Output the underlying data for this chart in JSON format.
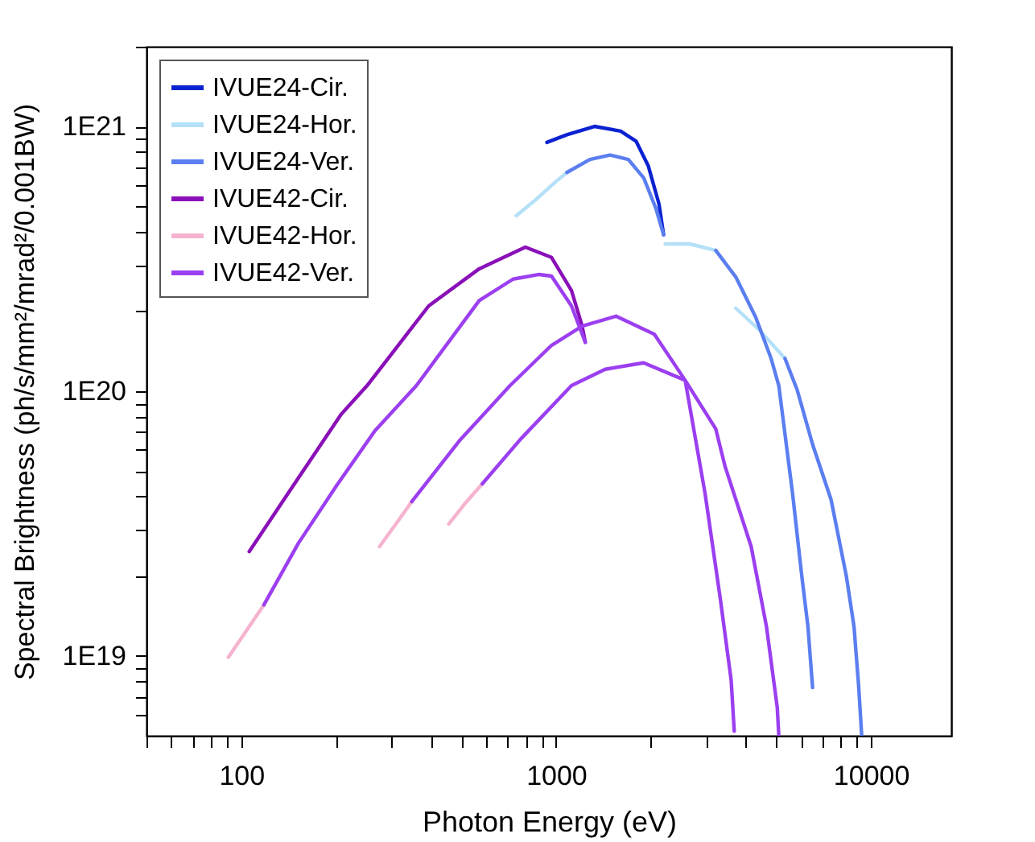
{
  "chart_data": {
    "type": "line",
    "xlabel": "Photon Energy (eV)",
    "ylabel": "Spectral Brightness (ph/s/mm²/mrad²/0.001BW)",
    "log": "xy",
    "legend": "top left",
    "marker": "none",
    "line_style": "solid",
    "xlim": [
      50,
      18000
    ],
    "ylim": [
      5e+18,
      2e+21
    ],
    "xticks": [
      {
        "value": 50,
        "label": null
      },
      {
        "value": 60,
        "label": null
      },
      {
        "value": 70,
        "label": null
      },
      {
        "value": 80,
        "label": null
      },
      {
        "value": 90,
        "label": null
      },
      100,
      {
        "value": 200,
        "label": null
      },
      {
        "value": 300,
        "label": null
      },
      {
        "value": 400,
        "label": null
      },
      {
        "value": 500,
        "label": null
      },
      {
        "value": 600,
        "label": null
      },
      {
        "value": 700,
        "label": null
      },
      {
        "value": 800,
        "label": null
      },
      {
        "value": 900,
        "label": null
      },
      1000,
      {
        "value": 2000,
        "label": null
      },
      {
        "value": 3000,
        "label": null
      },
      {
        "value": 4000,
        "label": null
      },
      {
        "value": 5000,
        "label": null
      },
      {
        "value": 6000,
        "label": null
      },
      {
        "value": 7000,
        "label": null
      },
      {
        "value": 8000,
        "label": null
      },
      {
        "value": 9000,
        "label": null
      },
      10000
    ],
    "yticks": [
      {
        "value": 6e+18,
        "label": null
      },
      {
        "value": 7e+18,
        "label": null
      },
      {
        "value": 8e+18,
        "label": null
      },
      {
        "value": 9e+18,
        "label": null
      },
      {
        "value": 1e+19,
        "label": "1E19"
      },
      {
        "value": 2e+19,
        "label": null
      },
      {
        "value": 3e+19,
        "label": null
      },
      {
        "value": 4e+19,
        "label": null
      },
      {
        "value": 5e+19,
        "label": null
      },
      {
        "value": 6e+19,
        "label": null
      },
      {
        "value": 7e+19,
        "label": null
      },
      {
        "value": 8e+19,
        "label": null
      },
      {
        "value": 9e+19,
        "label": null
      },
      {
        "value": 1e+20,
        "label": "1E20"
      },
      {
        "value": 2e+20,
        "label": null
      },
      {
        "value": 3e+20,
        "label": null
      },
      {
        "value": 4e+20,
        "label": null
      },
      {
        "value": 5e+20,
        "label": null
      },
      {
        "value": 6e+20,
        "label": null
      },
      {
        "value": 7e+20,
        "label": null
      },
      {
        "value": 8e+20,
        "label": null
      },
      {
        "value": 9e+20,
        "label": null
      },
      {
        "value": 1e+21,
        "label": "1E21"
      },
      {
        "value": 2e+21,
        "label": null
      }
    ],
    "series": [
      {
        "name": "IVUE24-Cir.",
        "color": "#0b22d1",
        "x": [
          935,
          1082,
          1324,
          1603,
          1794,
          1962,
          2122,
          2195
        ],
        "values": [
          8.7e+20,
          9.3e+20,
          1e+21,
          9.6e+20,
          8.8e+20,
          7.1e+20,
          5.1e+20,
          3.9e+20
        ]
      },
      {
        "name": "IVUE24-Hor.",
        "color": "#b4e0f8",
        "x": [
          747,
          864,
          1000,
          1082,
          null,
          2220,
          2657,
          3216,
          null,
          3721,
          4405,
          5333
        ],
        "values": [
          4.6e+20,
          5.3e+20,
          6.2e+20,
          6.7e+20,
          null,
          3.6e+20,
          3.6e+20,
          3.4e+20,
          null,
          2.06e+20,
          1.71e+20,
          1.33e+20
        ]
      },
      {
        "name": "IVUE24-Ver.",
        "color": "#5b7ef0",
        "x": [
          1082,
          1280,
          1482,
          1696,
          1897,
          2075,
          2195,
          null,
          3216,
          3721,
          4307,
          4818,
          5098,
          5639,
          6033,
          6310,
          6526,
          null,
          5333,
          5833,
          6526,
          7469,
          8356,
          8838,
          9142,
          9348
        ],
        "values": [
          6.7e+20,
          7.5e+20,
          7.8e+20,
          7.5e+20,
          6.4e+20,
          4.9e+20,
          3.9e+20,
          null,
          3.4e+20,
          2.7e+20,
          1.9e+20,
          1.33e+20,
          1.05e+20,
          4.1e+19,
          2e+19,
          1.29e+19,
          7.6e+18,
          null,
          1.33e+20,
          1.01e+20,
          6.3e+19,
          3.9e+19,
          2e+19,
          1.29e+19,
          7.7e+18,
          5e+18
        ]
      },
      {
        "name": "IVUE42-Cir.",
        "color": "#8a10b8",
        "x": [
          106,
          143,
          208,
          251,
          394,
          570,
          799,
          967,
          1119,
          1210,
          1238
        ],
        "values": [
          2.48e+19,
          4.23e+19,
          8.2e+19,
          1.05e+20,
          2.1e+20,
          2.9e+20,
          3.5e+20,
          3.2e+20,
          2.4e+20,
          1.76e+20,
          1.53e+20
        ]
      },
      {
        "name": "IVUE42-Hor.",
        "color": "#f5b3cf",
        "x": [
          91,
          103,
          118,
          null,
          275,
          315,
          348,
          null,
          456,
          515,
          583
        ],
        "values": [
          9.9e+18,
          1.23e+19,
          1.56e+19,
          null,
          2.59e+19,
          3.24e+19,
          3.83e+19,
          null,
          3.15e+19,
          3.78e+19,
          4.47e+19
        ]
      },
      {
        "name": "IVUE42-Ver.",
        "color": "#9b3ff0",
        "x": [
          118,
          152,
          201,
          266,
          360,
          570,
          730,
          884,
          967,
          1119,
          1238,
          null,
          348,
          493,
          714,
          967,
          1210,
          1550,
          2052,
          2570,
          2974,
          3327,
          3598,
          3680,
          null,
          583,
          772,
          1119,
          1432,
          1897,
          2570,
          3216,
          3441,
          4165,
          4659,
          5040,
          5098
        ],
        "values": [
          1.56e+19,
          2.67e+19,
          4.41e+19,
          7.1e+19,
          1.05e+20,
          2.2e+20,
          2.65e+20,
          2.76e+20,
          2.72e+20,
          2.1e+20,
          1.53e+20,
          null,
          3.83e+19,
          6.5e+19,
          1.05e+20,
          1.49e+20,
          1.76e+20,
          1.92e+20,
          1.64e+20,
          1.1e+20,
          4.1e+19,
          1.63e+19,
          8.1e+18,
          5.2e+18,
          null,
          4.47e+19,
          6.6e+19,
          1.05e+20,
          1.21e+20,
          1.28e+20,
          1.1e+20,
          7.2e+19,
          5.2e+19,
          2.59e+19,
          1.29e+19,
          6.4e+18,
          5e+18
        ]
      }
    ]
  }
}
